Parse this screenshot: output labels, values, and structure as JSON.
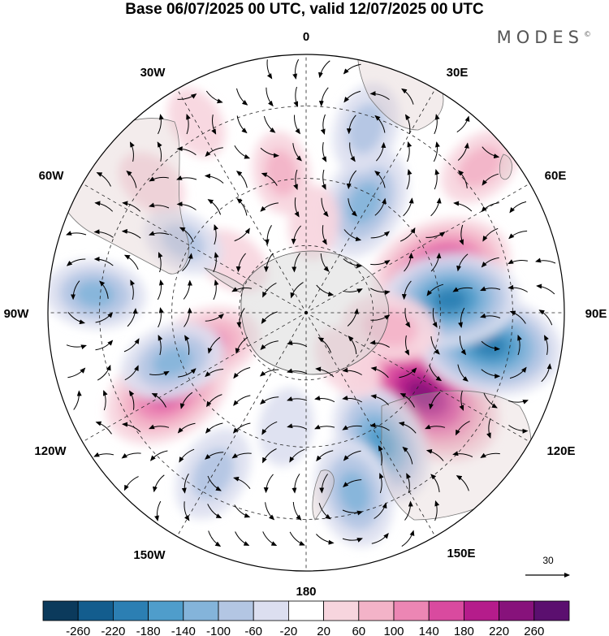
{
  "title": "Base 06/07/2025 00 UTC, valid 12/07/2025 00 UTC",
  "brand": "MODES",
  "brand_mark": "©",
  "longitude_labels": {
    "top": "0",
    "top_right": "30E",
    "right_upper": "60E",
    "right": "90E",
    "right_lower": "120E",
    "bottom_right": "150E",
    "bottom": "180",
    "bottom_left": "150W",
    "left_lower": "120W",
    "left": "90W",
    "left_upper": "60W",
    "top_left": "30W"
  },
  "vector_reference": {
    "value": "30"
  },
  "colorbar": {
    "labels": [
      "-260",
      "-220",
      "-180",
      "-140",
      "-100",
      "-60",
      "-20",
      "20",
      "60",
      "100",
      "140",
      "180",
      "220",
      "260"
    ],
    "colors": [
      "#0b3a5c",
      "#135d8e",
      "#2c7fb3",
      "#4f9dcb",
      "#84b4da",
      "#b3c6e3",
      "#dcdff0",
      "#ffffff",
      "#f7d5de",
      "#f3b3c8",
      "#ec86b4",
      "#d94a9f",
      "#b51c8b",
      "#87127b",
      "#5b0f6f"
    ]
  },
  "anomaly_centers": [
    {
      "lon": 72,
      "colat": 0.55,
      "value": 190
    },
    {
      "lon": 125,
      "colat": 0.55,
      "value": 250
    },
    {
      "lon": 100,
      "colat": 0.72,
      "value": -200
    },
    {
      "lon": 85,
      "colat": 0.56,
      "value": -180
    },
    {
      "lon": 150,
      "colat": 0.58,
      "value": -150
    },
    {
      "lon": 165,
      "colat": 0.72,
      "value": -120
    },
    {
      "lon": -120,
      "colat": 0.62,
      "value": 170
    },
    {
      "lon": -108,
      "colat": 0.4,
      "value": 110
    },
    {
      "lon": -110,
      "colat": 0.55,
      "value": -110
    },
    {
      "lon": -85,
      "colat": 0.82,
      "value": -100
    },
    {
      "lon": -150,
      "colat": 0.72,
      "value": -90
    },
    {
      "lon": 28,
      "colat": 0.48,
      "value": -130
    },
    {
      "lon": 18,
      "colat": 0.75,
      "value": -80
    },
    {
      "lon": -10,
      "colat": 0.55,
      "value": 60
    },
    {
      "lon": -55,
      "colat": 0.35,
      "value": 50
    },
    {
      "lon": -50,
      "colat": 0.78,
      "value": 40
    },
    {
      "lon": 100,
      "colat": 0.33,
      "value": 90
    },
    {
      "lon": 140,
      "colat": 0.25,
      "value": 50
    },
    {
      "lon": -30,
      "colat": 0.85,
      "value": 40
    },
    {
      "lon": 50,
      "colat": 0.88,
      "value": 70
    },
    {
      "lon": -60,
      "colat": 0.55,
      "value": -60
    },
    {
      "lon": 5,
      "colat": 0.35,
      "value": 40
    },
    {
      "lon": -170,
      "colat": 0.45,
      "value": -50
    }
  ]
}
